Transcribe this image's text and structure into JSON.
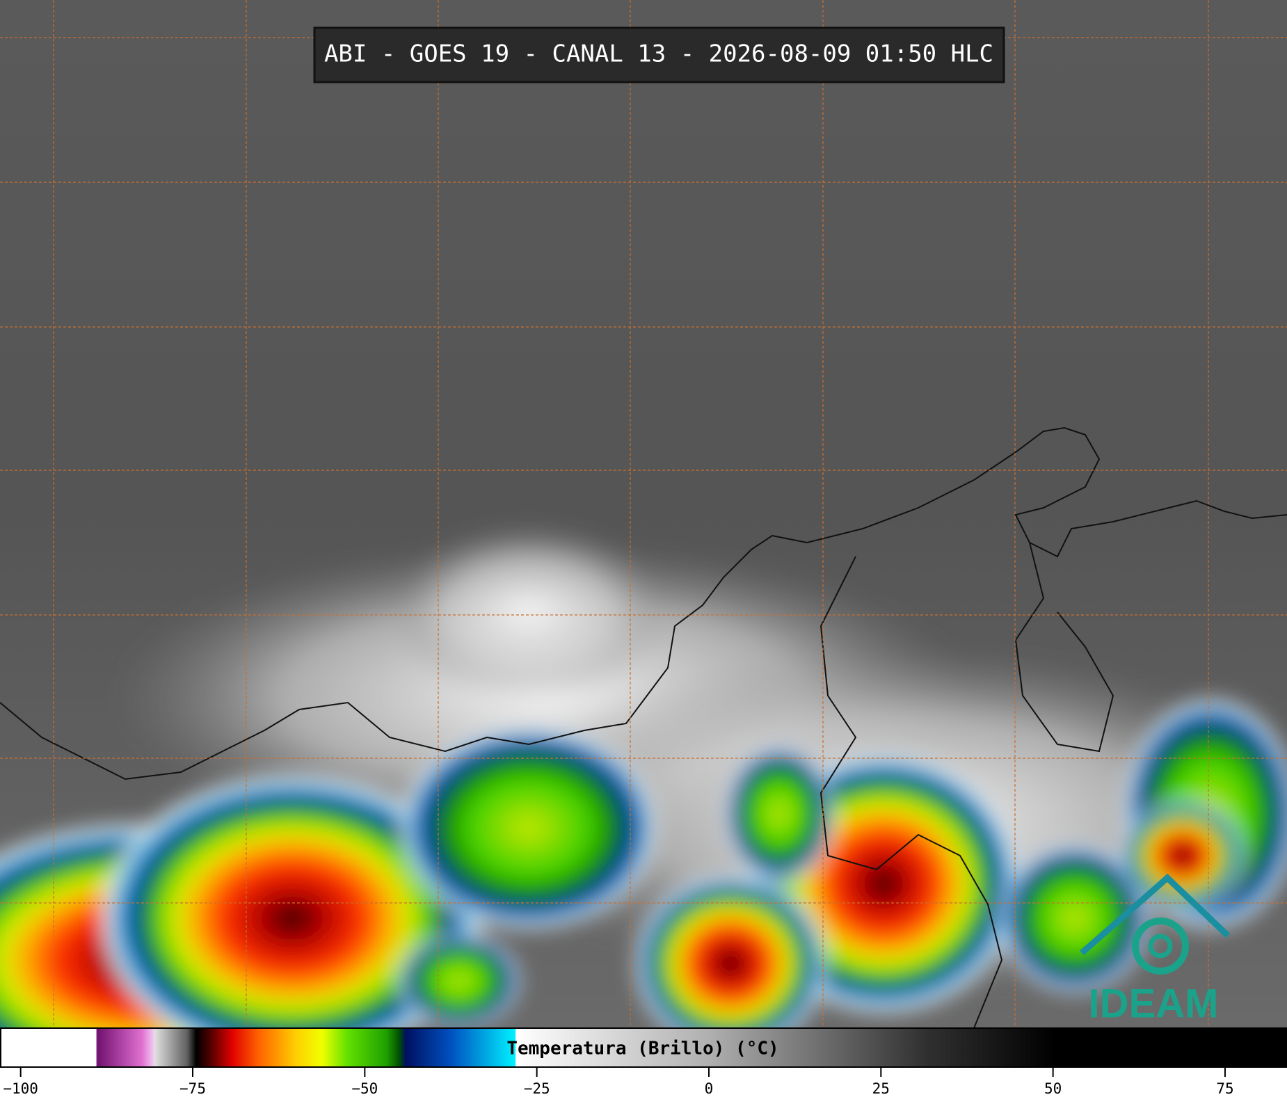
{
  "title": "ABI - GOES 19 - CANAL 13 - 2026-08-09 01:50 HLC",
  "colorbar": {
    "label": "Temperatura (Brillo) (°C)",
    "lim": [
      -103,
      84
    ],
    "ticks": [
      {
        "value": -100,
        "label": "−100"
      },
      {
        "value": -75,
        "label": "−75"
      },
      {
        "value": -50,
        "label": "−50"
      },
      {
        "value": -25,
        "label": "−25"
      },
      0,
      25,
      50,
      75
    ]
  },
  "logo": "IDEAM"
}
